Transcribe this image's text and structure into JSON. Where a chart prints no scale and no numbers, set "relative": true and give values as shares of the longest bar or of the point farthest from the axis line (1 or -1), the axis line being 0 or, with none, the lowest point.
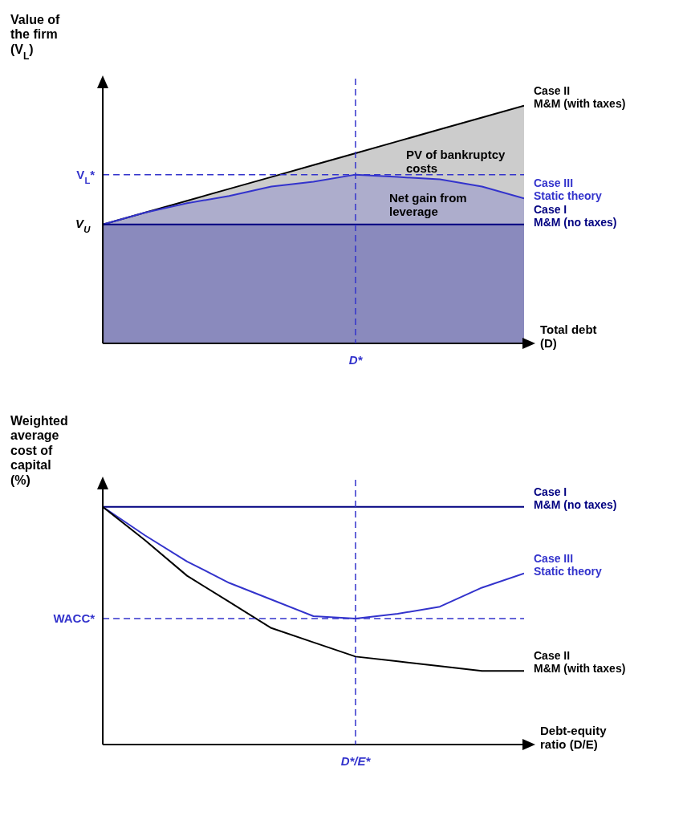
{
  "chart_data": [
    {
      "type": "area",
      "relative": true,
      "ylabel": "Value of the firm (V$_{L}$)",
      "xlabel": "Total debt (D)",
      "categories": [
        null,
        null,
        null,
        null,
        null,
        null,
        null,
        null,
        null,
        null,
        null
      ],
      "series": [
        {
          "name": "Case II\nM&M (with taxes)",
          "color": "#000000",
          "values": [
            0.5,
            0.55,
            0.6,
            0.65,
            0.7,
            0.75,
            0.8,
            0.85,
            0.9,
            0.95,
            1.0
          ]
        },
        {
          "name": "Case III\nStatic theory",
          "color": "#3333cc",
          "values": [
            0.5,
            0.55,
            0.59,
            0.62,
            0.66,
            0.68,
            0.71,
            0.7,
            0.69,
            0.66,
            0.61
          ]
        },
        {
          "name": "Case I\nM&M (no taxes)",
          "color": "#000080",
          "values": [
            0.5,
            0.5,
            0.5,
            0.5,
            0.5,
            0.5,
            0.5,
            0.5,
            0.5,
            0.5,
            0.5
          ]
        }
      ],
      "ref_lines": [
        {
          "axis": "y",
          "value": 0.71,
          "label": "V$_{L}$*",
          "color": "#3333cc",
          "line_style": "dashed"
        }
      ],
      "annotations": [
        "V$_{U}$",
        "PV of bankruptcy costs",
        "Net gain from leverage",
        "D*"
      ],
      "grid": false,
      "legend": false,
      "marker": "none",
      "line_style": "solid"
    },
    {
      "type": "line",
      "relative": true,
      "ylabel": "Weighted average cost of capital (%)",
      "xlabel": "Debt-equity ratio (D/E)",
      "categories": [
        null,
        null,
        null,
        null,
        null,
        null,
        null,
        null,
        null,
        null,
        null
      ],
      "series": [
        {
          "name": "Case I\nM&M (no taxes)",
          "color": "#000080",
          "values": [
            1.0,
            1.0,
            1.0,
            1.0,
            1.0,
            1.0,
            1.0,
            1.0,
            1.0,
            1.0,
            1.0
          ]
        },
        {
          "name": "Case III\nStatic theory",
          "color": "#3333cc",
          "values": [
            1.0,
            0.88,
            0.77,
            0.68,
            0.61,
            0.54,
            0.53,
            0.55,
            0.58,
            0.66,
            0.72
          ]
        },
        {
          "name": "Case II\nM&M (with taxes)",
          "color": "#000000",
          "values": [
            1.0,
            0.86,
            0.71,
            0.6,
            0.49,
            0.43,
            0.37,
            0.35,
            0.33,
            0.31,
            0.31
          ]
        }
      ],
      "ref_lines": [
        {
          "axis": "y",
          "value": 0.53,
          "label": "WACC*",
          "color": "#3333cc",
          "line_style": "dashed"
        }
      ],
      "annotations": [
        "D*/E*"
      ],
      "grid": false,
      "legend": false,
      "marker": "none",
      "line_style": "solid"
    }
  ]
}
